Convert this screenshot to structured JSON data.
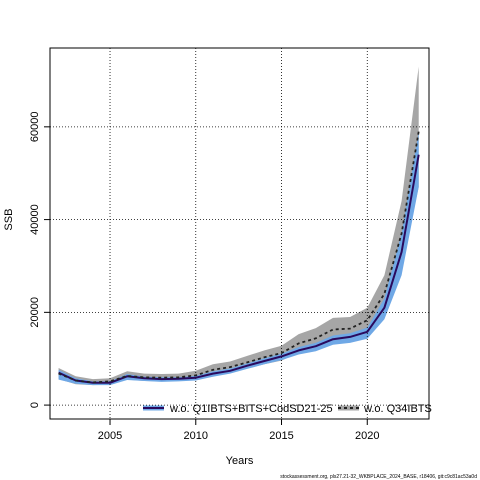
{
  "chart_data": {
    "type": "line",
    "xlabel": "Years",
    "ylabel": "SSB",
    "xlim": [
      2001.5,
      2023.6
    ],
    "ylim": [
      -3000,
      77000
    ],
    "xticks": [
      2005,
      2010,
      2015,
      2020
    ],
    "yticks": [
      0,
      20000,
      40000,
      60000
    ],
    "grid": true,
    "legend_position": "bottom",
    "x": [
      2002,
      2003,
      2004,
      2005,
      2006,
      2007,
      2008,
      2009,
      2010,
      2011,
      2012,
      2013,
      2014,
      2015,
      2016,
      2017,
      2018,
      2019,
      2020,
      2021,
      2022,
      2023
    ],
    "series": [
      {
        "name": "w.o. Q1IBTS+BITS+CodSD21-25",
        "color": "#2a0a5e",
        "style": "solid",
        "values": [
          7000,
          5300,
          4800,
          4800,
          6200,
          5800,
          5600,
          5700,
          5900,
          6800,
          7400,
          8500,
          9500,
          10500,
          11800,
          12700,
          14200,
          14700,
          15800,
          21000,
          33000,
          54000
        ],
        "band_lower": [
          5500,
          4600,
          4300,
          4300,
          5400,
          5200,
          5000,
          5100,
          5300,
          6100,
          6800,
          7800,
          8800,
          9700,
          10900,
          11600,
          13000,
          13400,
          14300,
          18500,
          28000,
          47000
        ],
        "band_upper": [
          7600,
          5800,
          5100,
          5100,
          6700,
          6100,
          6000,
          6000,
          6300,
          7300,
          7900,
          9000,
          10100,
          11100,
          12500,
          13400,
          15000,
          15500,
          16700,
          23000,
          37000,
          59000
        ],
        "band_color": "#6fa8e6"
      },
      {
        "name": "w.o. Q34IBTS",
        "color": "#222222",
        "style": "dotted",
        "values": [
          6800,
          5300,
          4900,
          5100,
          6300,
          6000,
          5900,
          6000,
          6400,
          7600,
          8200,
          9200,
          10300,
          11200,
          13300,
          14400,
          16300,
          16500,
          18300,
          24000,
          37000,
          59000
        ],
        "band_lower": [
          5600,
          4500,
          4300,
          4400,
          5500,
          5200,
          5100,
          5200,
          5500,
          6500,
          7000,
          7900,
          8800,
          9600,
          11300,
          12300,
          13900,
          14200,
          15600,
          20000,
          30000,
          47000
        ],
        "band_upper": [
          8000,
          6200,
          5600,
          5800,
          7300,
          6800,
          6700,
          6800,
          7400,
          8800,
          9400,
          10600,
          11800,
          12800,
          15300,
          16600,
          18800,
          19000,
          21000,
          28000,
          44000,
          73000
        ],
        "band_color": "#a6a6a6"
      }
    ],
    "footnote": "stockassessment.org, pls27.21-32_WKBPLACE_2024_BASE, r18406, git:c9c81ac53a0d"
  }
}
